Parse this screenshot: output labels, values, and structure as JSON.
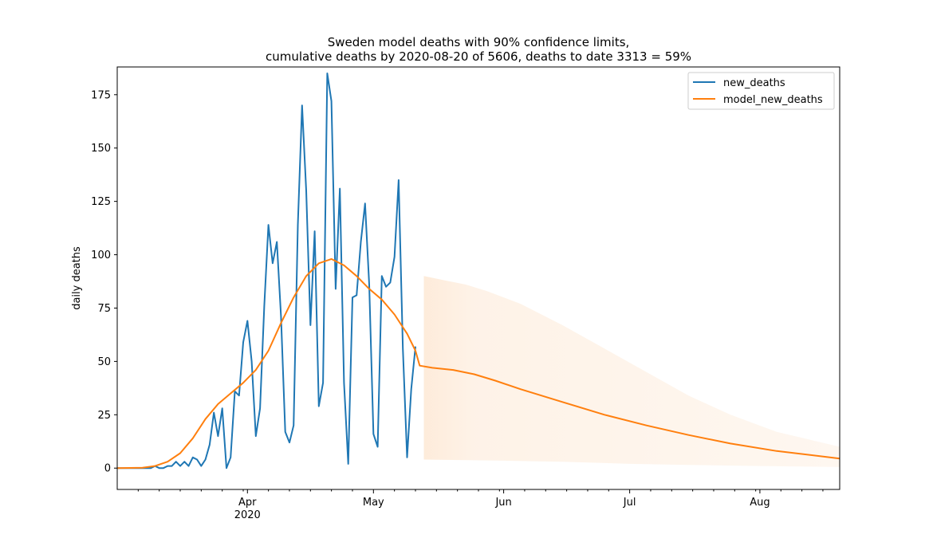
{
  "chart_data": {
    "type": "line",
    "title_line1": "Sweden model deaths with 90% confidence limits,",
    "title_line2": "cumulative deaths by 2020-08-20 of 5606, deaths to date 3313 = 59%",
    "xlabel": "",
    "ylabel": "daily deaths",
    "x_range": [
      "2020-03-01",
      "2020-08-20"
    ],
    "ylim": [
      -10,
      188
    ],
    "y_ticks": [
      0,
      25,
      50,
      75,
      100,
      125,
      150,
      175
    ],
    "x_ticks": [
      {
        "date": "2020-04-01",
        "label": "Apr",
        "sublabel": "2020"
      },
      {
        "date": "2020-05-01",
        "label": "May",
        "sublabel": ""
      },
      {
        "date": "2020-06-01",
        "label": "Jun",
        "sublabel": ""
      },
      {
        "date": "2020-07-01",
        "label": "Jul",
        "sublabel": ""
      },
      {
        "date": "2020-08-01",
        "label": "Aug",
        "sublabel": ""
      }
    ],
    "legend_position": "top-right",
    "grid": false,
    "colors": {
      "new_deaths": "#1f77b4",
      "model_new_deaths": "#ff7f0e",
      "confidence_band": "#fde8d4"
    },
    "series": [
      {
        "name": "new_deaths",
        "start_date": "2020-03-01",
        "values": [
          0,
          0,
          0,
          0,
          0,
          0,
          0,
          0,
          0,
          1,
          0,
          0,
          1,
          1,
          3,
          1,
          3,
          1,
          5,
          4,
          1,
          4,
          11,
          26,
          15,
          28,
          0,
          5,
          36,
          34,
          59,
          69,
          50,
          15,
          28,
          76,
          114,
          96,
          106,
          71,
          17,
          12,
          20,
          114,
          170,
          130,
          67,
          111,
          29,
          40,
          185,
          172,
          84,
          131,
          40,
          2,
          80,
          81,
          106,
          124,
          86,
          16,
          10,
          90,
          85,
          87,
          99,
          135,
          56,
          5,
          37,
          57
        ]
      },
      {
        "name": "model_new_deaths",
        "points": [
          {
            "date": "2020-03-01",
            "y": 0
          },
          {
            "date": "2020-03-07",
            "y": 0.2
          },
          {
            "date": "2020-03-10",
            "y": 1
          },
          {
            "date": "2020-03-13",
            "y": 3
          },
          {
            "date": "2020-03-16",
            "y": 7
          },
          {
            "date": "2020-03-19",
            "y": 14
          },
          {
            "date": "2020-03-22",
            "y": 23
          },
          {
            "date": "2020-03-25",
            "y": 30
          },
          {
            "date": "2020-03-28",
            "y": 35
          },
          {
            "date": "2020-03-31",
            "y": 40
          },
          {
            "date": "2020-04-03",
            "y": 46
          },
          {
            "date": "2020-04-06",
            "y": 55
          },
          {
            "date": "2020-04-09",
            "y": 68
          },
          {
            "date": "2020-04-12",
            "y": 80
          },
          {
            "date": "2020-04-15",
            "y": 90
          },
          {
            "date": "2020-04-18",
            "y": 96
          },
          {
            "date": "2020-04-21",
            "y": 98
          },
          {
            "date": "2020-04-24",
            "y": 95
          },
          {
            "date": "2020-04-27",
            "y": 90
          },
          {
            "date": "2020-04-30",
            "y": 84
          },
          {
            "date": "2020-05-03",
            "y": 79
          },
          {
            "date": "2020-05-06",
            "y": 72
          },
          {
            "date": "2020-05-09",
            "y": 63
          },
          {
            "date": "2020-05-11",
            "y": 55
          },
          {
            "date": "2020-05-12",
            "y": 48
          },
          {
            "date": "2020-05-15",
            "y": 47
          },
          {
            "date": "2020-05-20",
            "y": 46
          },
          {
            "date": "2020-05-25",
            "y": 44
          },
          {
            "date": "2020-05-30",
            "y": 41
          },
          {
            "date": "2020-06-05",
            "y": 37
          },
          {
            "date": "2020-06-15",
            "y": 31
          },
          {
            "date": "2020-06-25",
            "y": 25
          },
          {
            "date": "2020-07-05",
            "y": 20
          },
          {
            "date": "2020-07-15",
            "y": 15.5
          },
          {
            "date": "2020-07-25",
            "y": 11.5
          },
          {
            "date": "2020-08-05",
            "y": 8
          },
          {
            "date": "2020-08-20",
            "y": 4.5
          }
        ]
      }
    ],
    "confidence_band": {
      "upper": [
        {
          "date": "2020-05-13",
          "y": 90
        },
        {
          "date": "2020-05-18",
          "y": 88
        },
        {
          "date": "2020-05-23",
          "y": 86
        },
        {
          "date": "2020-05-28",
          "y": 83
        },
        {
          "date": "2020-06-05",
          "y": 77
        },
        {
          "date": "2020-06-15",
          "y": 67
        },
        {
          "date": "2020-06-25",
          "y": 56
        },
        {
          "date": "2020-07-05",
          "y": 45
        },
        {
          "date": "2020-07-15",
          "y": 34
        },
        {
          "date": "2020-07-25",
          "y": 25
        },
        {
          "date": "2020-08-05",
          "y": 17
        },
        {
          "date": "2020-08-20",
          "y": 10
        }
      ],
      "lower": [
        {
          "date": "2020-05-13",
          "y": 4
        },
        {
          "date": "2020-06-01",
          "y": 3.5
        },
        {
          "date": "2020-06-15",
          "y": 3
        },
        {
          "date": "2020-07-01",
          "y": 2
        },
        {
          "date": "2020-07-15",
          "y": 1.5
        },
        {
          "date": "2020-08-01",
          "y": 1
        },
        {
          "date": "2020-08-20",
          "y": 0.5
        }
      ]
    }
  }
}
